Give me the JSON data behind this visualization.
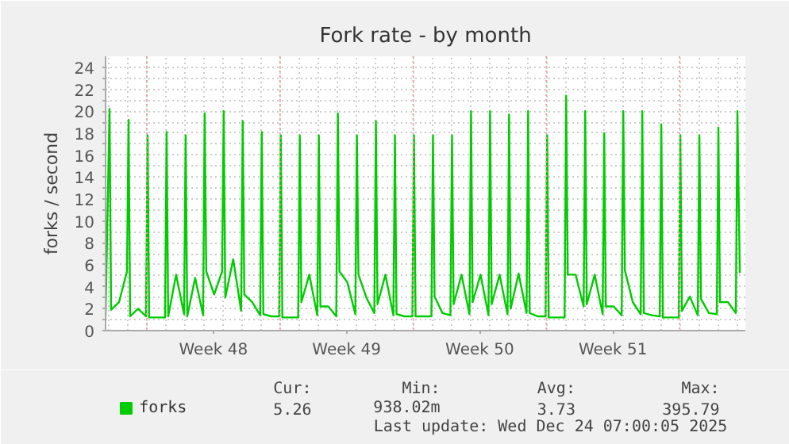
{
  "chart_data": {
    "type": "line",
    "title": "Fork rate - by month",
    "ylabel": "forks / second",
    "x": [
      "2025-11-20T16:00",
      "2025-11-20T21:00",
      "2025-11-20T23:00",
      "2025-11-21T09:00",
      "2025-11-21T19:00",
      "2025-11-21T21:00",
      "2025-11-21T23:00",
      "2025-11-22T09:00",
      "2025-11-22T19:00",
      "2025-11-22T21:00",
      "2025-11-22T23:00",
      "2025-11-23T09:00",
      "2025-11-23T19:00",
      "2025-11-23T21:00",
      "2025-11-23T23:00",
      "2025-11-24T09:00",
      "2025-11-24T19:00",
      "2025-11-24T21:00",
      "2025-11-24T23:00",
      "2025-11-25T09:00",
      "2025-11-25T19:00",
      "2025-11-25T21:00",
      "2025-11-25T23:00",
      "2025-11-26T09:00",
      "2025-11-26T19:00",
      "2025-11-26T21:00",
      "2025-11-26T23:00",
      "2025-11-27T09:00",
      "2025-11-27T19:00",
      "2025-11-27T21:00",
      "2025-11-27T23:00",
      "2025-11-28T09:00",
      "2025-11-28T19:00",
      "2025-11-28T21:00",
      "2025-11-28T23:00",
      "2025-11-29T09:00",
      "2025-11-29T19:00",
      "2025-11-29T21:00",
      "2025-11-29T23:00",
      "2025-11-30T09:00",
      "2025-11-30T19:00",
      "2025-11-30T21:00",
      "2025-11-30T23:00",
      "2025-12-01T09:00",
      "2025-12-01T19:00",
      "2025-12-01T21:00",
      "2025-12-01T23:00",
      "2025-12-02T09:00",
      "2025-12-02T19:00",
      "2025-12-02T21:00",
      "2025-12-02T23:00",
      "2025-12-03T09:00",
      "2025-12-03T19:00",
      "2025-12-03T21:00",
      "2025-12-03T23:00",
      "2025-12-04T09:00",
      "2025-12-04T19:00",
      "2025-12-04T21:00",
      "2025-12-04T23:00",
      "2025-12-05T09:00",
      "2025-12-05T19:00",
      "2025-12-05T21:00",
      "2025-12-05T23:00",
      "2025-12-06T09:00",
      "2025-12-06T19:00",
      "2025-12-06T21:00",
      "2025-12-06T23:00",
      "2025-12-07T09:00",
      "2025-12-07T19:00",
      "2025-12-07T21:00",
      "2025-12-07T23:00",
      "2025-12-08T09:00",
      "2025-12-08T19:00",
      "2025-12-08T21:00",
      "2025-12-08T23:00",
      "2025-12-09T09:00",
      "2025-12-09T19:00",
      "2025-12-09T21:00",
      "2025-12-09T23:00",
      "2025-12-10T09:00",
      "2025-12-10T19:00",
      "2025-12-10T21:00",
      "2025-12-10T23:00",
      "2025-12-11T09:00",
      "2025-12-11T19:00",
      "2025-12-11T21:00",
      "2025-12-11T23:00",
      "2025-12-12T09:00",
      "2025-12-12T19:00",
      "2025-12-12T21:00",
      "2025-12-12T23:00",
      "2025-12-13T09:00",
      "2025-12-13T19:00",
      "2025-12-13T21:00",
      "2025-12-13T23:00",
      "2025-12-14T09:00",
      "2025-12-14T19:00",
      "2025-12-14T21:00",
      "2025-12-14T23:00",
      "2025-12-15T09:00",
      "2025-12-15T19:00",
      "2025-12-15T21:00",
      "2025-12-15T23:00",
      "2025-12-16T09:00",
      "2025-12-16T19:00",
      "2025-12-16T21:00",
      "2025-12-16T23:00",
      "2025-12-17T09:00",
      "2025-12-17T19:00",
      "2025-12-17T21:00",
      "2025-12-17T23:00",
      "2025-12-18T09:00",
      "2025-12-18T19:00",
      "2025-12-18T21:00",
      "2025-12-18T23:00",
      "2025-12-19T09:00",
      "2025-12-19T19:00",
      "2025-12-19T21:00",
      "2025-12-19T23:00",
      "2025-12-20T09:00",
      "2025-12-20T19:00",
      "2025-12-20T21:00",
      "2025-12-20T23:00",
      "2025-12-21T09:00",
      "2025-12-21T19:00",
      "2025-12-21T21:00",
      "2025-12-21T23:00",
      "2025-12-22T09:00",
      "2025-12-22T19:00",
      "2025-12-22T21:00",
      "2025-12-22T23:00",
      "2025-12-23T09:00",
      "2025-12-23T19:00",
      "2025-12-23T21:00",
      "2025-12-24T00:00"
    ],
    "series": [
      {
        "name": "forks",
        "color": "#00cc00",
        "values": [
          1.3,
          20.2,
          1.9,
          2.6,
          5.4,
          19.2,
          1.3,
          2.0,
          1.3,
          17.8,
          1.2,
          1.2,
          1.2,
          18.1,
          1.3,
          5.1,
          1.5,
          17.8,
          1.3,
          4.8,
          1.4,
          19.8,
          5.4,
          3.3,
          5.4,
          20,
          3.0,
          6.5,
          1.8,
          19.1,
          3.3,
          2.6,
          1.4,
          18.1,
          1.5,
          1.3,
          1.3,
          17.8,
          1.2,
          1.2,
          1.2,
          17.8,
          2.6,
          5.1,
          1.4,
          17.8,
          2.2,
          2.2,
          1.3,
          19.8,
          5.4,
          4.4,
          1.5,
          17.8,
          5.1,
          3.0,
          1.6,
          19.1,
          2.4,
          5.1,
          1.4,
          17.8,
          1.5,
          1.3,
          1.3,
          17.8,
          1.3,
          1.3,
          1.3,
          17.8,
          3.1,
          1.6,
          1.4,
          17.8,
          2.4,
          5.1,
          1.5,
          20,
          2.6,
          5.1,
          1.4,
          20,
          2.4,
          5.1,
          1.5,
          19.7,
          2.0,
          5.2,
          1.6,
          20,
          1.6,
          1.3,
          1.3,
          17.8,
          1.2,
          1.2,
          1.2,
          21.4,
          5.1,
          5.1,
          2.2,
          20,
          2.4,
          5.1,
          1.5,
          18,
          2.2,
          2.2,
          1.4,
          20,
          5.5,
          2.6,
          1.5,
          20,
          1.6,
          1.4,
          1.3,
          18.8,
          1.2,
          1.2,
          1.2,
          17.8,
          1.8,
          3.1,
          1.4,
          17.8,
          2.9,
          1.6,
          1.5,
          18.5,
          2.6,
          2.6,
          1.6,
          20,
          5.26
        ]
      }
    ],
    "xlim": [
      "2025-11-20T16:00",
      "2025-12-24T07:00"
    ],
    "xticks": [
      {
        "value": "2025-11-26T08:00",
        "label": "Week 48"
      },
      {
        "value": "2025-12-03T08:00",
        "label": "Week 49"
      },
      {
        "value": "2025-12-10T08:00",
        "label": "Week 50"
      },
      {
        "value": "2025-12-17T08:00",
        "label": "Week 51"
      }
    ],
    "ylim": [
      0,
      25
    ],
    "yticks": [
      0,
      {
        "value": 1,
        "label": null
      },
      2,
      {
        "value": 3,
        "label": null
      },
      4,
      {
        "value": 5,
        "label": null
      },
      6,
      {
        "value": 7,
        "label": null
      },
      8,
      {
        "value": 9,
        "label": null
      },
      10,
      {
        "value": 11,
        "label": null
      },
      12,
      {
        "value": 13,
        "label": null
      },
      14,
      {
        "value": 15,
        "label": null
      },
      16,
      {
        "value": 17,
        "label": null
      },
      18,
      {
        "value": 19,
        "label": null
      },
      20,
      {
        "value": 21,
        "label": null
      },
      22,
      {
        "value": 23,
        "label": null
      },
      24
    ],
    "ref_lines": [
      {
        "axis": "x",
        "value": "2025-11-22T20:00",
        "color": "#e8a0a0",
        "line_style": "dotted"
      },
      {
        "axis": "x",
        "value": "2025-11-29T20:00",
        "color": "#e8a0a0",
        "line_style": "dotted"
      },
      {
        "axis": "x",
        "value": "2025-12-06T20:00",
        "color": "#e8a0a0",
        "line_style": "dotted"
      },
      {
        "axis": "x",
        "value": "2025-12-13T20:00",
        "color": "#e8a0a0",
        "line_style": "dotted"
      },
      {
        "axis": "x",
        "value": "2025-12-20T20:00",
        "color": "#e8a0a0",
        "line_style": "dotted"
      }
    ],
    "grid": true,
    "legend": "bottom",
    "marker": "none",
    "line_style": "solid",
    "annotations": [
      "Cur:",
      "Min:",
      "Avg:",
      "Max:",
      "5.26",
      "938.02m",
      "3.73",
      "395.79",
      "Last update: Wed Dec 24 07:00:05 2025"
    ]
  }
}
